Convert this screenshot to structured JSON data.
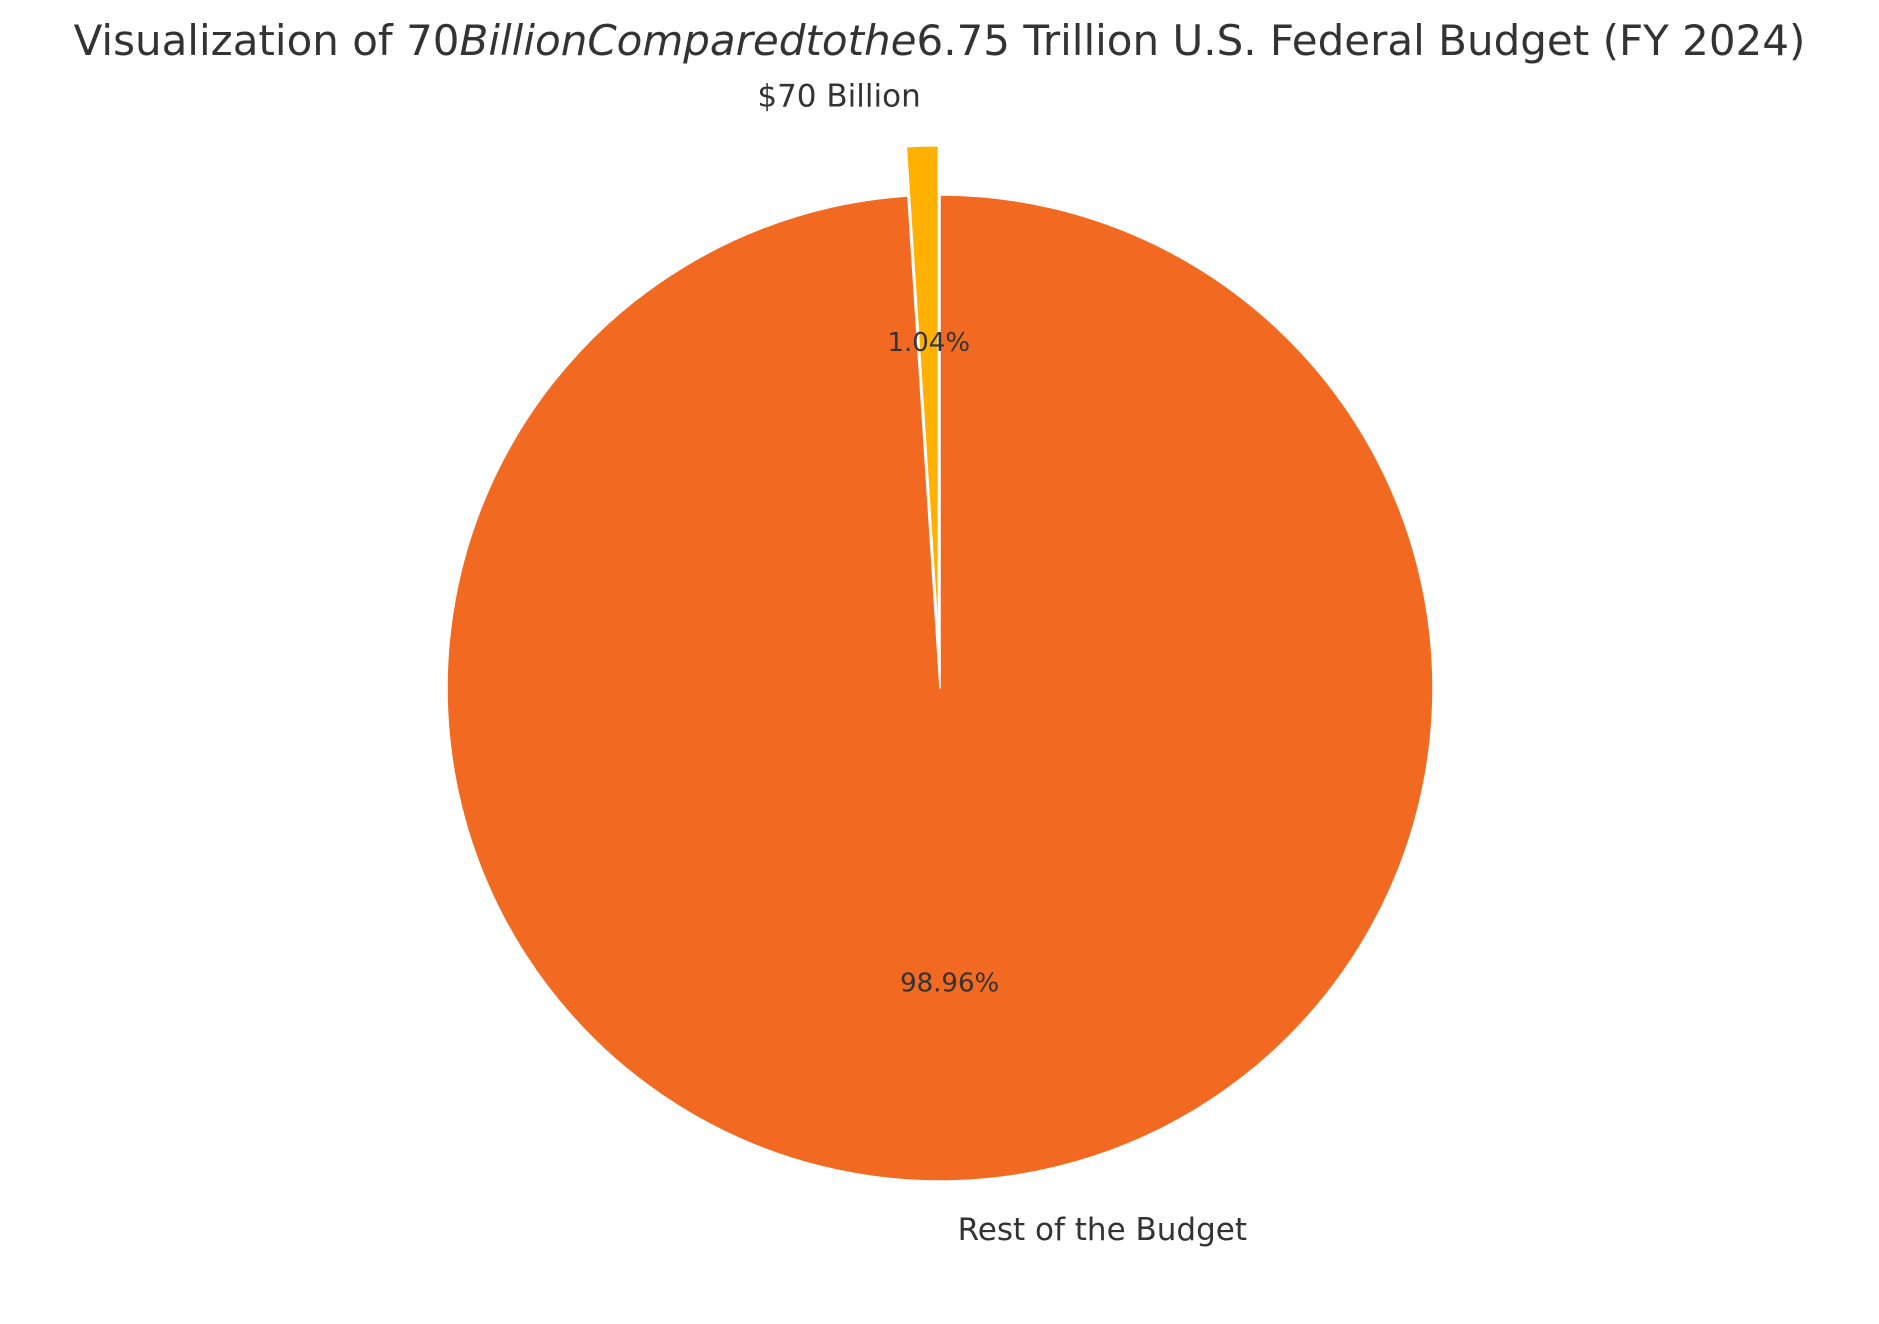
{
  "chart_data": {
    "type": "pie",
    "title_segments": [
      {
        "text": "Visualization of 70",
        "style": "normal"
      },
      {
        "text": "BillionComparedtothe",
        "style": "italic"
      },
      {
        "text": "6.75 Trillion U.S. Federal Budget (FY 2024)",
        "style": "normal"
      }
    ],
    "labels": [
      "$70 Billion",
      "Rest of the Budget"
    ],
    "values": [
      70,
      6680
    ],
    "percent_labels": [
      "1.04%",
      "98.96%"
    ],
    "explode": [
      0.1,
      0
    ],
    "start_angle_deg": 90,
    "direction": "counterclockwise",
    "colors": [
      "#FFB000",
      "#F26A21"
    ],
    "edge_color": "#FFFFFF",
    "text_color": "#333333",
    "legend": "none"
  }
}
